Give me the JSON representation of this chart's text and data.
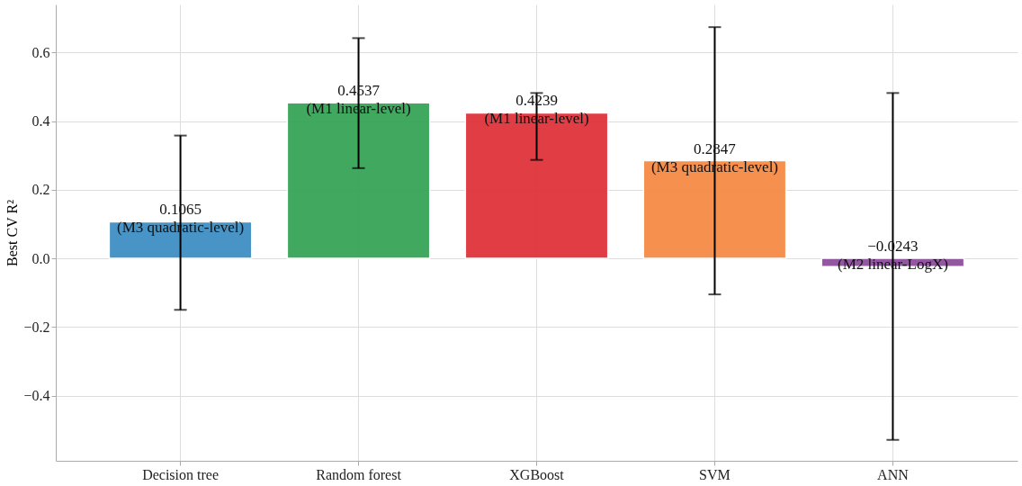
{
  "chart_data": {
    "type": "bar",
    "ylabel": "Best CV R²",
    "categories": [
      "Decision tree",
      "Random forest",
      "XGBoost",
      "SVM",
      "ANN"
    ],
    "values": [
      0.1065,
      0.4537,
      0.4239,
      0.2847,
      -0.0243
    ],
    "colors": [
      "#3f8fc4",
      "#36a457",
      "#e0333a",
      "#f58b45",
      "#8e4f9e"
    ],
    "errors": [
      [
        -0.15,
        0.358
      ],
      [
        0.263,
        0.642
      ],
      [
        0.287,
        0.482
      ],
      [
        -0.105,
        0.674
      ],
      [
        -0.529,
        0.482
      ]
    ],
    "value_labels": [
      "0.1065\n(M3 quadratic-level)",
      "0.4537\n(M1 linear-level)",
      "0.4239\n(M1 linear-level)",
      "0.2847\n(M3 quadratic-level)",
      "−0.0243\n(M2 linear-LogX)"
    ],
    "ylim": [
      -0.59,
      0.74
    ],
    "yticks": [
      {
        "value": -0.4,
        "label": "−0.4"
      },
      {
        "value": -0.2,
        "label": "−0.2"
      },
      {
        "value": 0,
        "label": "0.0"
      },
      {
        "value": 0.2,
        "label": "0.2"
      },
      {
        "value": 0.4,
        "label": "0.4"
      },
      {
        "value": 0.6,
        "label": "0.6"
      }
    ],
    "grid": true
  }
}
